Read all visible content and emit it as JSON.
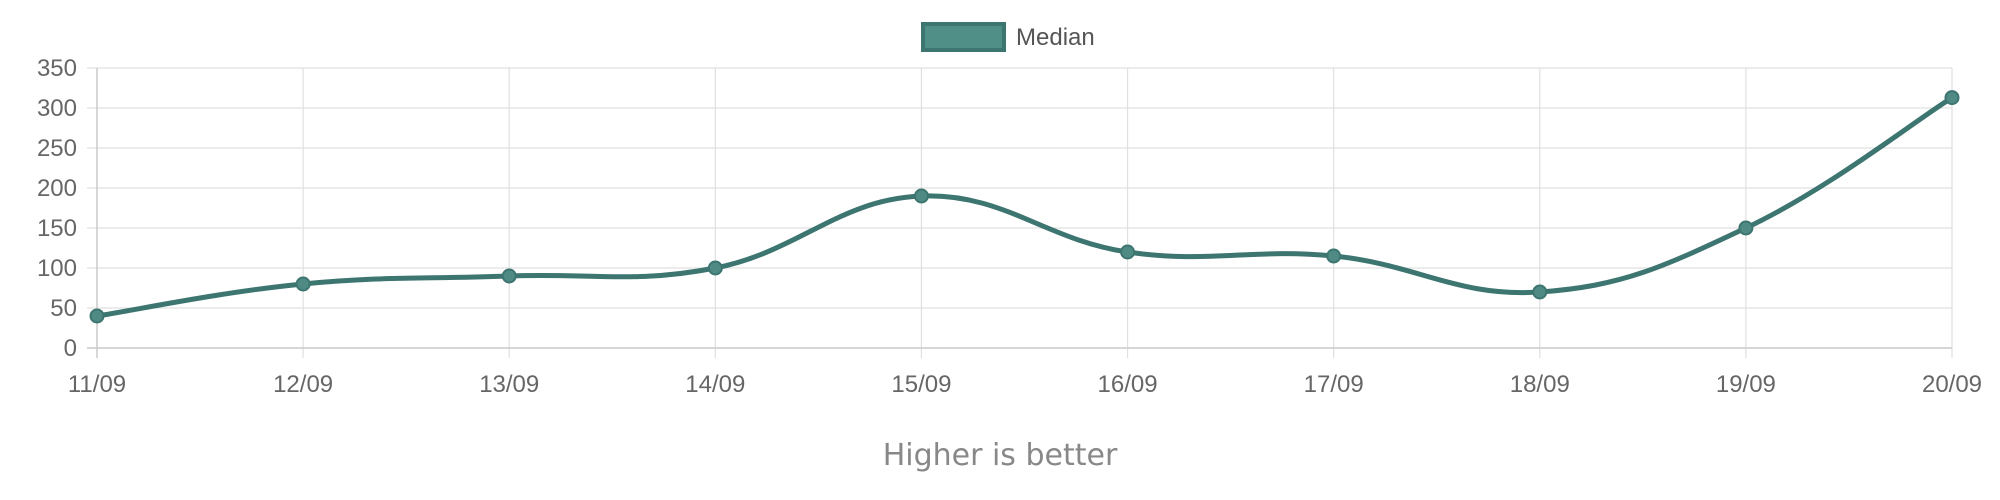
{
  "chart_data": {
    "type": "line",
    "x": [
      "11/09",
      "12/09",
      "13/09",
      "14/09",
      "15/09",
      "16/09",
      "17/09",
      "18/09",
      "19/09",
      "20/09"
    ],
    "series": [
      {
        "name": "Median",
        "values": [
          40,
          80,
          90,
          100,
          190,
          120,
          115,
          70,
          150,
          313
        ]
      }
    ],
    "ylim": [
      0,
      350
    ],
    "yticks": [
      0,
      50,
      100,
      150,
      200,
      250,
      300,
      350
    ],
    "grid": true,
    "legend": "top-center",
    "colors": {
      "line": "#3d7570",
      "point_fill": "#4f8a84",
      "legend_fill": "#508f88",
      "grid": "#e0e0e0",
      "axis": "#cccccc"
    }
  },
  "footer": {
    "note": "Higher is better"
  }
}
